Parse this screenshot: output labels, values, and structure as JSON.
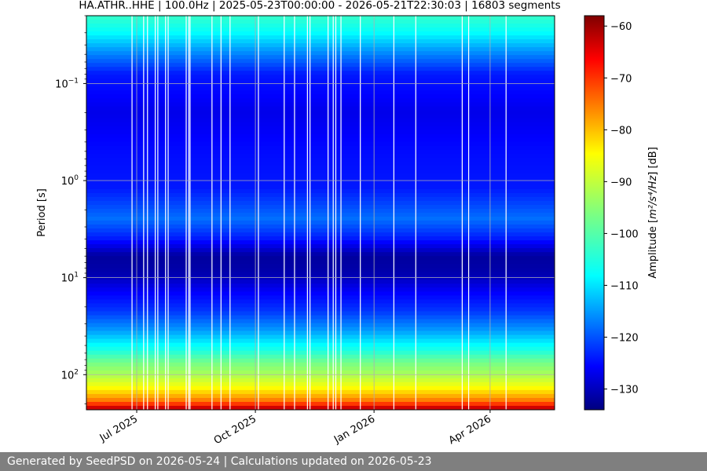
{
  "chart_data": {
    "type": "heatmap",
    "title": "HA.ATHR..HHE | 100.0Hz | 2025-05-23T00:00:00 - 2026-05-21T22:30:03 | 16803 segments",
    "x_range": [
      "2025-05-23",
      "2026-05-21"
    ],
    "x_ticks": [
      {
        "label": "Jul 2025",
        "date": "2025-07-01"
      },
      {
        "label": "Oct 2025",
        "date": "2025-10-01"
      },
      {
        "label": "Jan 2026",
        "date": "2026-01-01"
      },
      {
        "label": "Apr 2026",
        "date": "2026-04-01"
      }
    ],
    "ylabel": "Period [s]",
    "y_scale": "log",
    "y_inverted": true,
    "y_range": [
      0.02,
      230
    ],
    "y_ticks": [
      {
        "base": "10",
        "exp": "−1",
        "value": 0.1
      },
      {
        "base": "10",
        "exp": "0",
        "value": 1
      },
      {
        "base": "10",
        "exp": "1",
        "value": 10
      },
      {
        "base": "10",
        "exp": "2",
        "value": 100
      }
    ],
    "grid": true,
    "colormap": "jet",
    "colorbar": {
      "label_prefix": "Amplitude [",
      "label_math": "m²/s⁴/Hz",
      "label_suffix": "] [dB]",
      "min": -134,
      "max": -58,
      "ticks": [
        "−60",
        "−70",
        "−80",
        "−90",
        "−100",
        "−110",
        "−120",
        "−130"
      ],
      "tick_values": [
        -60,
        -70,
        -80,
        -90,
        -100,
        -110,
        -120,
        -130
      ]
    },
    "amplitude_profile": [
      {
        "period": 0.02,
        "db": -103
      },
      {
        "period": 0.03,
        "db": -108
      },
      {
        "period": 0.045,
        "db": -115
      },
      {
        "period": 0.08,
        "db": -124
      },
      {
        "period": 0.2,
        "db": -127
      },
      {
        "period": 0.5,
        "db": -125
      },
      {
        "period": 1.2,
        "db": -124
      },
      {
        "period": 2.5,
        "db": -118
      },
      {
        "period": 4,
        "db": -124
      },
      {
        "period": 6,
        "db": -132
      },
      {
        "period": 9,
        "db": -131
      },
      {
        "period": 14,
        "db": -126
      },
      {
        "period": 22,
        "db": -122
      },
      {
        "period": 35,
        "db": -115
      },
      {
        "period": 55,
        "db": -106
      },
      {
        "period": 75,
        "db": -97
      },
      {
        "period": 100,
        "db": -92
      },
      {
        "period": 130,
        "db": -86
      },
      {
        "period": 160,
        "db": -80
      },
      {
        "period": 190,
        "db": -74
      },
      {
        "period": 230,
        "db": -60
      }
    ],
    "data_gaps": [
      "2025-06-27",
      "2025-07-06",
      "2025-07-09",
      "2025-07-15",
      "2025-07-17",
      "2025-07-23",
      "2025-07-25",
      "2025-08-08",
      "2025-08-10",
      "2025-08-11",
      "2025-08-28",
      "2025-09-04",
      "2025-09-11",
      "2025-10-03",
      "2025-10-23",
      "2025-10-31",
      "2025-11-10",
      "2025-11-12",
      "2025-11-26",
      "2025-11-30",
      "2025-12-02",
      "2025-12-06",
      "2025-12-21",
      "2026-01-16",
      "2026-02-02",
      "2026-03-10",
      "2026-03-15",
      "2026-04-13"
    ]
  },
  "footer": {
    "text": "Generated by SeedPSD on 2026-05-24 | Calculations updated on 2026-05-23"
  }
}
